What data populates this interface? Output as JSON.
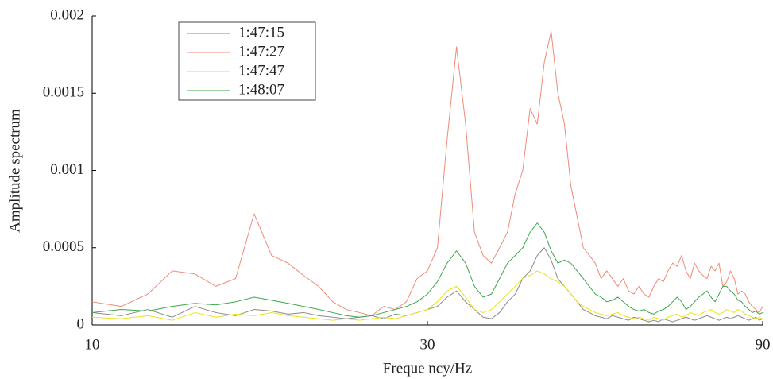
{
  "chart_data": {
    "type": "line",
    "xscale": "log",
    "xlabel": "Freque ncy/Hz",
    "ylabel": "Amplitude spectrum",
    "xlim": [
      10,
      90
    ],
    "xticks": [
      10,
      30,
      90
    ],
    "ylim": [
      0,
      0.002
    ],
    "yticks": [
      0,
      0.0005,
      0.001,
      0.0015,
      0.002
    ],
    "legend": "upper left",
    "x": [
      10,
      11,
      12,
      13,
      14,
      15,
      16,
      17,
      18,
      19,
      20,
      21,
      22,
      23,
      24,
      25,
      26,
      27,
      28,
      29,
      30,
      31,
      32,
      33,
      34,
      35,
      36,
      37,
      38,
      39,
      40,
      41,
      42,
      43,
      44,
      45,
      46,
      47,
      48,
      49,
      50,
      51,
      52,
      53,
      54,
      55,
      56,
      57,
      58,
      59,
      60,
      61,
      62,
      63,
      64,
      65,
      66,
      67,
      68,
      69,
      70,
      71,
      72,
      73,
      74,
      75,
      76,
      77,
      78,
      79,
      80,
      81,
      82,
      83,
      84,
      85,
      86,
      87,
      88,
      89,
      90
    ],
    "series": [
      {
        "name": "1:47:15",
        "color": "#8a8a8a",
        "values": [
          8e-05,
          6e-05,
          0.0001,
          5e-05,
          0.00012,
          8e-05,
          6e-05,
          0.0001,
          9e-05,
          7e-05,
          8e-05,
          6e-05,
          5e-05,
          4e-05,
          5e-05,
          6e-05,
          4e-05,
          7e-05,
          6e-05,
          8e-05,
          0.0001,
          0.00012,
          0.00018,
          0.00022,
          0.00015,
          0.0001,
          5e-05,
          4e-05,
          8e-05,
          0.00015,
          0.0002,
          0.0003,
          0.00035,
          0.00045,
          0.0005,
          0.00042,
          0.0003,
          0.00025,
          0.0002,
          0.00015,
          0.0001,
          8e-05,
          6e-05,
          5e-05,
          4e-05,
          6e-05,
          5e-05,
          4e-05,
          3e-05,
          5e-05,
          4e-05,
          3e-05,
          2e-05,
          3e-05,
          2e-05,
          4e-05,
          3e-05,
          2e-05,
          3e-05,
          4e-05,
          5e-05,
          4e-05,
          3e-05,
          4e-05,
          5e-05,
          6e-05,
          5e-05,
          4e-05,
          3e-05,
          4e-05,
          5e-05,
          4e-05,
          5e-05,
          6e-05,
          5e-05,
          4e-05,
          3e-05,
          4e-05,
          5e-05,
          3e-05,
          4e-05
        ]
      },
      {
        "name": "1:47:27",
        "color": "#f08a78",
        "values": [
          0.00015,
          0.00012,
          0.0002,
          0.00035,
          0.00033,
          0.00025,
          0.0003,
          0.00072,
          0.00045,
          0.0004,
          0.00032,
          0.00025,
          0.00015,
          0.0001,
          8e-05,
          6e-05,
          0.00012,
          0.0001,
          0.00015,
          0.0003,
          0.00035,
          0.0005,
          0.0012,
          0.0018,
          0.0013,
          0.0006,
          0.00045,
          0.0004,
          0.0005,
          0.0006,
          0.00085,
          0.001,
          0.0014,
          0.0013,
          0.0017,
          0.0019,
          0.0015,
          0.0013,
          0.0009,
          0.0007,
          0.0005,
          0.00045,
          0.0004,
          0.0003,
          0.00035,
          0.0003,
          0.00025,
          0.0003,
          0.00022,
          0.0002,
          0.00025,
          0.0002,
          0.00018,
          0.00025,
          0.0003,
          0.00028,
          0.00035,
          0.0004,
          0.00038,
          0.00045,
          0.00035,
          0.0003,
          0.0004,
          0.00035,
          0.00032,
          0.0003,
          0.00038,
          0.00035,
          0.0004,
          0.00025,
          0.00028,
          0.00035,
          0.0003,
          0.0002,
          0.00022,
          0.0002,
          0.00015,
          0.00012,
          0.0001,
          8e-05,
          0.00012
        ]
      },
      {
        "name": "1:47:47",
        "color": "#ece21a",
        "values": [
          5e-05,
          4e-05,
          6e-05,
          3e-05,
          8e-05,
          5e-05,
          7e-05,
          6e-05,
          8e-05,
          6e-05,
          5e-05,
          4e-05,
          3e-05,
          4e-05,
          3e-05,
          4e-05,
          5e-05,
          4e-05,
          6e-05,
          8e-05,
          0.0001,
          0.00015,
          0.00022,
          0.00025,
          0.00018,
          0.0001,
          8e-05,
          0.0001,
          0.00015,
          0.0002,
          0.00025,
          0.0003,
          0.00032,
          0.00035,
          0.00033,
          0.0003,
          0.00028,
          0.00025,
          0.0002,
          0.00015,
          0.00012,
          0.0001,
          8e-05,
          7e-05,
          6e-05,
          7e-05,
          8e-05,
          6e-05,
          5e-05,
          4e-05,
          5e-05,
          4e-05,
          3e-05,
          5e-05,
          4e-05,
          3e-05,
          5e-05,
          6e-05,
          7e-05,
          5e-05,
          6e-05,
          8e-05,
          7e-05,
          6e-05,
          8e-05,
          9e-05,
          0.0001,
          8e-05,
          7e-05,
          8e-05,
          0.0001,
          9e-05,
          8e-05,
          0.0001,
          9e-05,
          7e-05,
          6e-05,
          5e-05,
          4e-05,
          5e-05,
          4e-05
        ]
      },
      {
        "name": "1:48:07",
        "color": "#3aa84a",
        "values": [
          8e-05,
          0.0001,
          9e-05,
          0.00012,
          0.00014,
          0.00013,
          0.00015,
          0.00018,
          0.00016,
          0.00014,
          0.00012,
          0.0001,
          8e-05,
          6e-05,
          5e-05,
          6e-05,
          8e-05,
          0.0001,
          0.00012,
          0.00015,
          0.0002,
          0.00028,
          0.0004,
          0.00048,
          0.0004,
          0.00025,
          0.00018,
          0.0002,
          0.0003,
          0.0004,
          0.00045,
          0.0005,
          0.0006,
          0.00066,
          0.0006,
          0.00048,
          0.0004,
          0.00042,
          0.0004,
          0.00035,
          0.0003,
          0.00025,
          0.0002,
          0.00018,
          0.00015,
          0.00016,
          0.00018,
          0.00015,
          0.00012,
          0.0001,
          9e-05,
          0.0001,
          8e-05,
          7e-05,
          9e-05,
          0.0001,
          0.00012,
          0.00015,
          0.00018,
          0.00015,
          0.0001,
          0.00012,
          0.00015,
          0.00018,
          0.0002,
          0.00022,
          0.00018,
          0.00015,
          0.0002,
          0.00025,
          0.00025,
          0.00022,
          0.0002,
          0.00016,
          0.00015,
          0.00012,
          0.0001,
          8e-05,
          9e-05,
          7e-05,
          8e-05
        ]
      }
    ]
  }
}
